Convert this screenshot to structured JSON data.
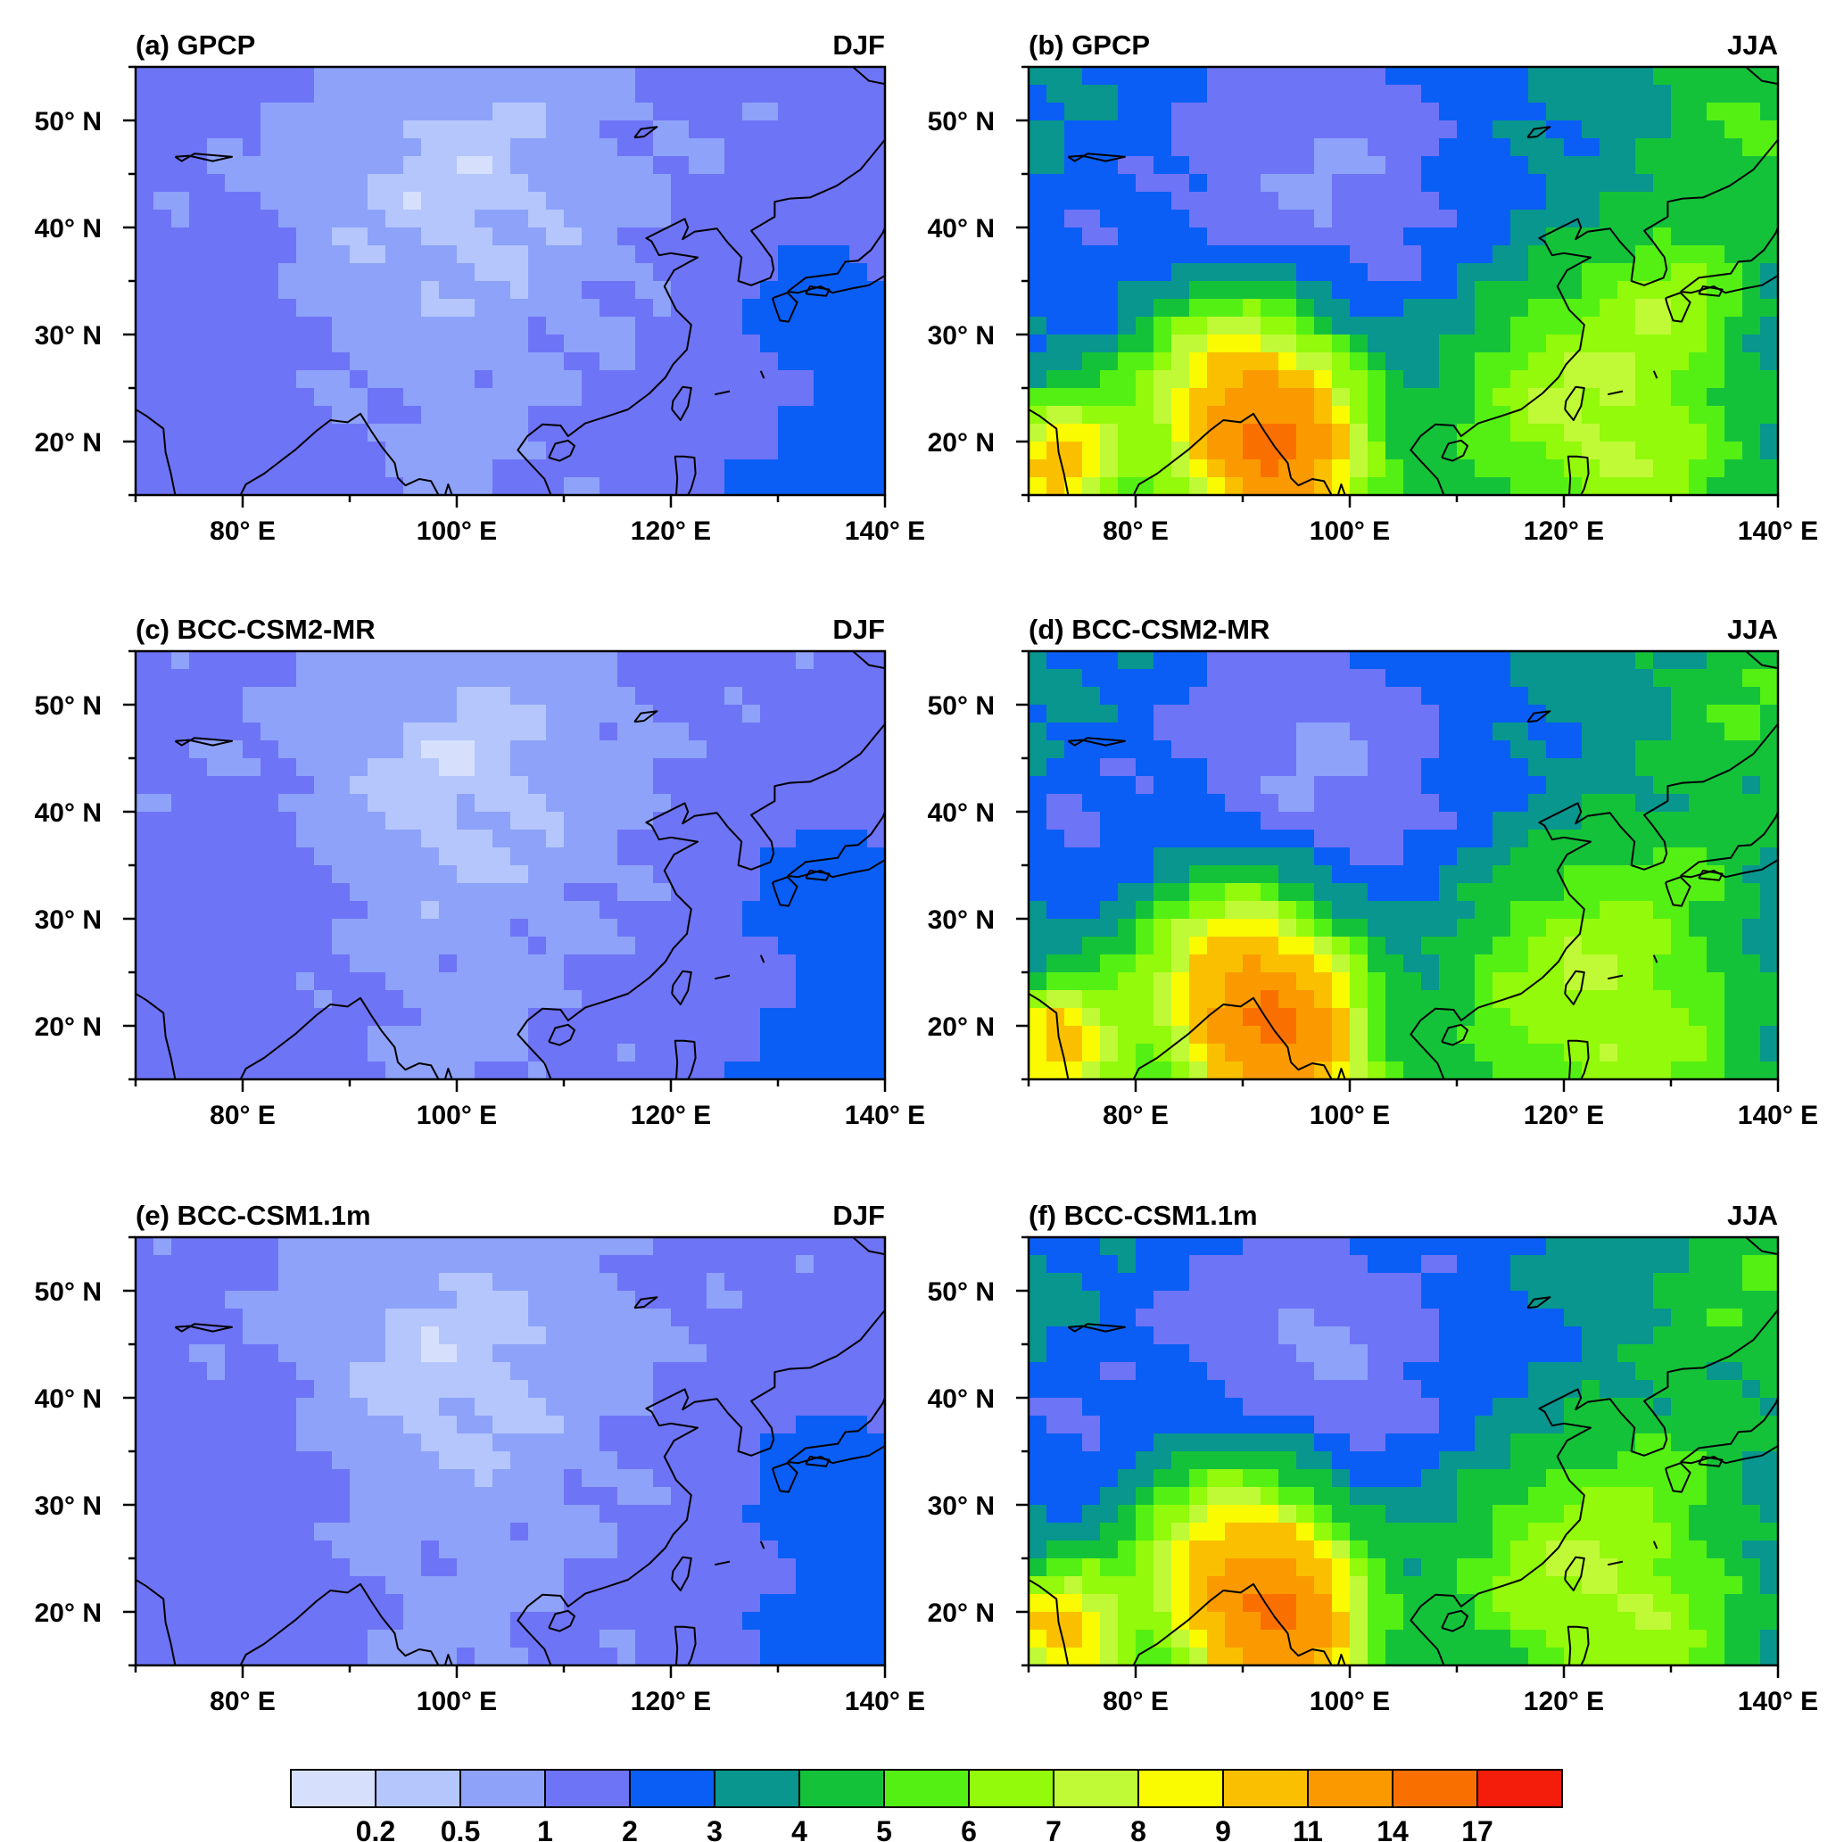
{
  "panels": [
    {
      "id": "a",
      "title": "(a) GPCP",
      "season": "DJF",
      "kind": "obs",
      "mode": "DJF"
    },
    {
      "id": "b",
      "title": "(b) GPCP",
      "season": "JJA",
      "kind": "obs",
      "mode": "JJA"
    },
    {
      "id": "c",
      "title": "(c) BCC-CSM2-MR",
      "season": "DJF",
      "kind": "m2",
      "mode": "DJF"
    },
    {
      "id": "d",
      "title": "(d) BCC-CSM2-MR",
      "season": "JJA",
      "kind": "m2",
      "mode": "JJA"
    },
    {
      "id": "e",
      "title": "(e) BCC-CSM1.1m",
      "season": "DJF",
      "kind": "m1",
      "mode": "DJF"
    },
    {
      "id": "f",
      "title": "(f) BCC-CSM1.1m",
      "season": "JJA",
      "kind": "m1",
      "mode": "JJA"
    }
  ],
  "axes": {
    "lon_range": [
      70,
      140
    ],
    "lat_range": [
      15,
      55
    ],
    "x_ticks": [
      "80° E",
      "100° E",
      "120° E",
      "140° E"
    ],
    "y_ticks": [
      "50° N",
      "40° N",
      "30° N",
      "20° N"
    ]
  },
  "colorbar": {
    "levels": [
      "0.2",
      "0.5",
      "1",
      "2",
      "3",
      "4",
      "5",
      "6",
      "7",
      "8",
      "9",
      "11",
      "14",
      "17"
    ],
    "colors": [
      "#d6e0fc",
      "#b4c6fc",
      "#8ea2fa",
      "#6e74f6",
      "#0a5ef6",
      "#08968e",
      "#14c23a",
      "#54f014",
      "#92fa0a",
      "#c0fa36",
      "#fafa00",
      "#fac000",
      "#fa9a00",
      "#fa7000",
      "#f41c0a"
    ]
  }
}
